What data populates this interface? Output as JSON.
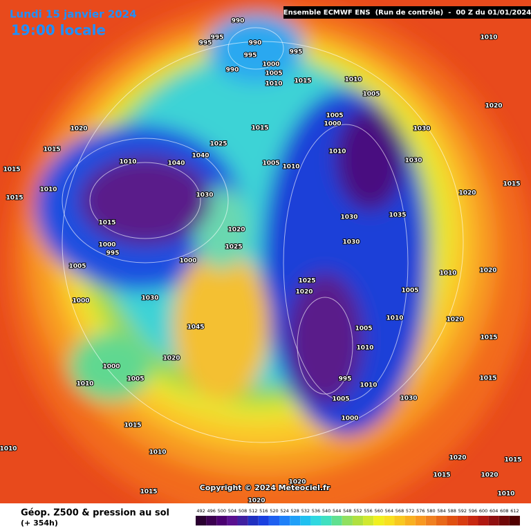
{
  "header": {
    "date": "Lundi 15 janvier 2024",
    "time": "19:00 locale",
    "run": "Ensemble ECMWF ENS  (Run de contrôle)  -  00 Z du 01/01/2024"
  },
  "copyright": "Copyright © 2024 Meteociel.fr",
  "footer": {
    "title": "Géop. Z500 & pression au sol",
    "lead": "(+ 354h)"
  },
  "colorbar": {
    "labels": [
      492,
      496,
      500,
      504,
      508,
      512,
      516,
      520,
      524,
      528,
      532,
      536,
      540,
      544,
      548,
      552,
      556,
      560,
      564,
      568,
      572,
      576,
      580,
      584,
      588,
      592,
      596,
      600,
      604,
      608,
      612
    ],
    "colors": [
      "#2a0030",
      "#3c0050",
      "#4b0070",
      "#5a1090",
      "#4020a0",
      "#2030c0",
      "#1a40e0",
      "#1e60f0",
      "#1e80f8",
      "#20a0f8",
      "#20c0f0",
      "#30d8e0",
      "#40e0c0",
      "#60e090",
      "#90e060",
      "#b0e040",
      "#d0e830",
      "#f0f020",
      "#f8e020",
      "#f8c820",
      "#f8b020",
      "#f89820",
      "#f08020",
      "#e86818",
      "#e05010",
      "#d83c10",
      "#c82810",
      "#b01810",
      "#901010",
      "#700808",
      "#500000"
    ]
  },
  "isobar_labels": [
    "990",
    "995",
    "995",
    "990",
    "995",
    "995",
    "990",
    "1000",
    "1005",
    "1010",
    "1015",
    "1010",
    "1005",
    "1010",
    "1020",
    "1020",
    "1015",
    "1010",
    "1040",
    "1040",
    "1025",
    "1015",
    "1005",
    "1000",
    "1030",
    "1005",
    "1010",
    "1010",
    "1030",
    "1015",
    "1010",
    "1030",
    "1015",
    "1015",
    "1020",
    "1000",
    "995",
    "1025",
    "1000",
    "1030",
    "1030",
    "1035",
    "1005",
    "1025",
    "1020",
    "1005",
    "1000",
    "1030",
    "1010",
    "1005",
    "1045",
    "1010",
    "1000",
    "1020",
    "1005",
    "1010",
    "995",
    "1010",
    "1005",
    "1000",
    "1030",
    "1015",
    "1010",
    "1010",
    "1015",
    "1020",
    "1020",
    "1015",
    "1020",
    "1015",
    "1020",
    "1010",
    "1015",
    "1020",
    "1015",
    "1010",
    "1020",
    "1015",
    "1020"
  ]
}
